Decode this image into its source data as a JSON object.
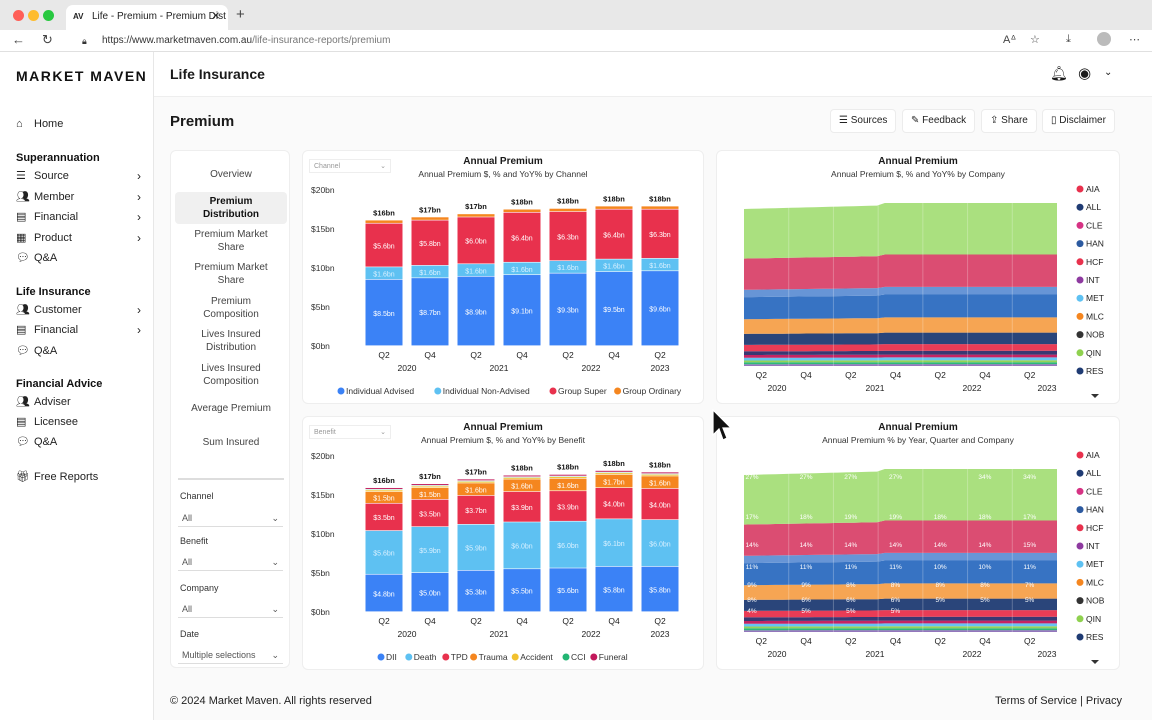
{
  "browser": {
    "tab_title": "Life - Premium - Premium Dist",
    "tab_favicon": "AV",
    "url_domain": "https://www.marketmaven.com.au",
    "url_path": "/life-insurance-reports/premium"
  },
  "sidebar": {
    "logo": "MARKET MAVEN",
    "home": "Home",
    "sections": [
      {
        "title": "Superannuation",
        "items": [
          {
            "label": "Source",
            "chev": true
          },
          {
            "label": "Member",
            "chev": true
          },
          {
            "label": "Financial",
            "chev": true
          },
          {
            "label": "Product",
            "chev": true
          },
          {
            "label": "Q&A",
            "chev": false
          }
        ]
      },
      {
        "title": "Life Insurance",
        "items": [
          {
            "label": "Customer",
            "chev": true
          },
          {
            "label": "Financial",
            "chev": true
          },
          {
            "label": "Q&A",
            "chev": false
          }
        ]
      },
      {
        "title": "Financial Advice",
        "items": [
          {
            "label": "Adviser",
            "chev": false
          },
          {
            "label": "Licensee",
            "chev": false
          },
          {
            "label": "Q&A",
            "chev": false
          }
        ]
      }
    ],
    "free_reports": "Free Reports"
  },
  "header": {
    "title": "Life Insurance"
  },
  "page": {
    "title": "Premium",
    "buttons": {
      "sources": "Sources",
      "feedback": "Feedback",
      "share": "Share",
      "disclaimer": "Disclaimer"
    }
  },
  "left_menu": {
    "items": [
      "Overview",
      "Premium Distribution",
      "Premium Market Share",
      "Premium Market Share",
      "Premium Composition",
      "Lives Insured Distribution",
      "Lives Insured Composition",
      "Average Premium",
      "Sum Insured"
    ],
    "filters": [
      {
        "label": "Channel",
        "value": "All"
      },
      {
        "label": "Benefit",
        "value": "All"
      },
      {
        "label": "Company",
        "value": "All"
      },
      {
        "label": "Date",
        "value": "Multiple selections"
      }
    ]
  },
  "footer": {
    "copyright": "© 2024 Market Maven. All rights reserved",
    "links": "Terms of Service | Privacy"
  },
  "chart_data": [
    {
      "type": "bar",
      "title": "Annual Premium",
      "subtitle": "Annual Premium $, % and YoY% by Channel",
      "selector": "Channel",
      "y_ticks": [
        "$0bn",
        "$5bn",
        "$10bn",
        "$15bn",
        "$20bn"
      ],
      "ylim": [
        0,
        20
      ],
      "quarters": [
        "Q2",
        "Q4",
        "Q2",
        "Q4",
        "Q2",
        "Q4",
        "Q2"
      ],
      "years": [
        "2020",
        "2021",
        "2022",
        "2023"
      ],
      "totals": [
        "$16bn",
        "$17bn",
        "$17bn",
        "$18bn",
        "$18bn",
        "$18bn",
        "$18bn"
      ],
      "series": [
        {
          "name": "Individual Advised",
          "color": "#3b82f6",
          "values": [
            8.5,
            8.7,
            8.9,
            9.1,
            9.3,
            9.5,
            9.6
          ],
          "labels": [
            "$8.5bn",
            "$8.7bn",
            "$8.9bn",
            "$9.1bn",
            "$9.3bn",
            "$9.5bn",
            "$9.6bn"
          ]
        },
        {
          "name": "Individual Non-Advised",
          "color": "#5ec1f2",
          "values": [
            1.6,
            1.6,
            1.6,
            1.6,
            1.6,
            1.6,
            1.6
          ],
          "labels": [
            "$1.6bn",
            "$1.6bn",
            "$1.6bn",
            "$1.6bn",
            "$1.6bn",
            "$1.6bn",
            "$1.6bn"
          ]
        },
        {
          "name": "Group Super",
          "color": "#e8314d",
          "values": [
            5.6,
            5.8,
            6.0,
            6.4,
            6.3,
            6.4,
            6.3
          ],
          "labels": [
            "$5.6bn",
            "$5.8bn",
            "$6.0bn",
            "$6.4bn",
            "$6.3bn",
            "$6.4bn",
            "$6.3bn"
          ]
        },
        {
          "name": "Group Ordinary",
          "color": "#f5861f",
          "values": [
            0.4,
            0.4,
            0.4,
            0.4,
            0.4,
            0.4,
            0.4
          ],
          "labels": [
            "",
            "",
            "",
            "",
            "",
            "",
            ""
          ]
        }
      ]
    },
    {
      "type": "area",
      "title": "Annual Premium",
      "subtitle": "Annual Premium $, % and YoY% by Company",
      "quarters": [
        "Q2",
        "Q4",
        "Q2",
        "Q4",
        "Q2",
        "Q4",
        "Q2"
      ],
      "years": [
        "2020",
        "2021",
        "2022",
        "2023"
      ],
      "shares_pct": [
        2,
        2,
        4,
        6,
        8,
        11,
        14,
        17,
        27
      ],
      "legend": [
        "AIA",
        "ALL",
        "CLE",
        "HAN",
        "HCF",
        "INT",
        "MET",
        "MLC",
        "NOB",
        "QIN",
        "RES"
      ]
    },
    {
      "type": "bar",
      "title": "Annual Premium",
      "subtitle": "Annual Premium $, % and YoY% by Benefit",
      "selector": "Benefit",
      "y_ticks": [
        "$0bn",
        "$5bn",
        "$10bn",
        "$15bn",
        "$20bn"
      ],
      "ylim": [
        0,
        20
      ],
      "quarters": [
        "Q2",
        "Q4",
        "Q2",
        "Q4",
        "Q2",
        "Q4",
        "Q2"
      ],
      "years": [
        "2020",
        "2021",
        "2022",
        "2023"
      ],
      "totals": [
        "$16bn",
        "$17bn",
        "$17bn",
        "$18bn",
        "$18bn",
        "$18bn",
        "$18bn"
      ],
      "series": [
        {
          "name": "DII",
          "color": "#3b82f6",
          "values": [
            4.8,
            5.0,
            5.3,
            5.5,
            5.6,
            5.8,
            5.8
          ],
          "labels": [
            "$4.8bn",
            "$5.0bn",
            "$5.3bn",
            "$5.5bn",
            "$5.6bn",
            "$5.8bn",
            "$5.8bn"
          ]
        },
        {
          "name": "Death",
          "color": "#5ec1f2",
          "values": [
            5.6,
            5.9,
            5.9,
            6.0,
            6.0,
            6.1,
            6.0
          ],
          "labels": [
            "$5.6bn",
            "$5.9bn",
            "$5.9bn",
            "$6.0bn",
            "$6.0bn",
            "$6.1bn",
            "$6.0bn"
          ]
        },
        {
          "name": "TPD",
          "color": "#e8314d",
          "values": [
            3.5,
            3.5,
            3.7,
            3.9,
            3.9,
            4.0,
            4.0
          ],
          "labels": [
            "$3.5bn",
            "$3.5bn",
            "$3.7bn",
            "$3.9bn",
            "$3.9bn",
            "$4.0bn",
            "$4.0bn"
          ]
        },
        {
          "name": "Trauma",
          "color": "#f5861f",
          "values": [
            1.5,
            1.5,
            1.6,
            1.6,
            1.6,
            1.7,
            1.6
          ],
          "labels": [
            "$1.5bn",
            "$1.5bn",
            "$1.6bn",
            "$1.6bn",
            "$1.6bn",
            "$1.7bn",
            "$1.6bn"
          ]
        },
        {
          "name": "Accident",
          "color": "#f2c12e",
          "values": [
            0.2,
            0.2,
            0.2,
            0.2,
            0.2,
            0.2,
            0.2
          ],
          "labels": [
            "",
            "",
            "",
            "",
            "",
            "",
            ""
          ]
        },
        {
          "name": "CCI",
          "color": "#22b573",
          "values": [
            0.1,
            0.1,
            0.1,
            0.1,
            0.1,
            0.1,
            0.1
          ],
          "labels": [
            "",
            "",
            "",
            "",
            "",
            "",
            ""
          ]
        },
        {
          "name": "Funeral",
          "color": "#c2185b",
          "values": [
            0.2,
            0.2,
            0.2,
            0.2,
            0.2,
            0.2,
            0.2
          ],
          "labels": [
            "",
            "",
            "",
            "",
            "",
            "",
            ""
          ]
        }
      ]
    },
    {
      "type": "area",
      "title": "Annual Premium",
      "subtitle": "Annual Premium % by Year, Quarter and Company",
      "quarters": [
        "Q2",
        "Q4",
        "Q2",
        "Q4",
        "Q2",
        "Q4",
        "Q2"
      ],
      "years": [
        "2020",
        "2021",
        "2022",
        "2023"
      ],
      "shares_pct": [
        2,
        2,
        4,
        6,
        8,
        9,
        11,
        14,
        17,
        27
      ],
      "point_labels": [
        [
          "27%",
          "27%",
          "27%",
          "27%",
          "",
          "34%",
          "34%"
        ],
        [
          "17%",
          "18%",
          "19%",
          "19%",
          "18%",
          "18%",
          "17%"
        ],
        [
          "14%",
          "14%",
          "14%",
          "14%",
          "14%",
          "14%",
          "15%"
        ],
        [
          "11%",
          "11%",
          "11%",
          "11%",
          "10%",
          "10%",
          "11%"
        ],
        [
          "9%",
          "9%",
          "8%",
          "8%",
          "8%",
          "8%",
          "7%"
        ],
        [
          "8%",
          "6%",
          "6%",
          "6%",
          "5%",
          "5%",
          "5%"
        ],
        [
          "4%",
          "5%",
          "5%",
          "5%",
          "",
          "",
          ""
        ]
      ],
      "legend": [
        "AIA",
        "ALL",
        "CLE",
        "HAN",
        "HCF",
        "INT",
        "MET",
        "MLC",
        "NOB",
        "QIN",
        "RES"
      ]
    }
  ],
  "legend_colors": {
    "AIA": "#e8314d",
    "ALL": "#1f3b73",
    "CLE": "#d63384",
    "HAN": "#2c5aa0",
    "HCF": "#e8314d",
    "INT": "#8e3aa0",
    "MET": "#5ec1f2",
    "MLC": "#f5861f",
    "NOB": "#333333",
    "QIN": "#8fd14f",
    "RES": "#1f3b73"
  }
}
